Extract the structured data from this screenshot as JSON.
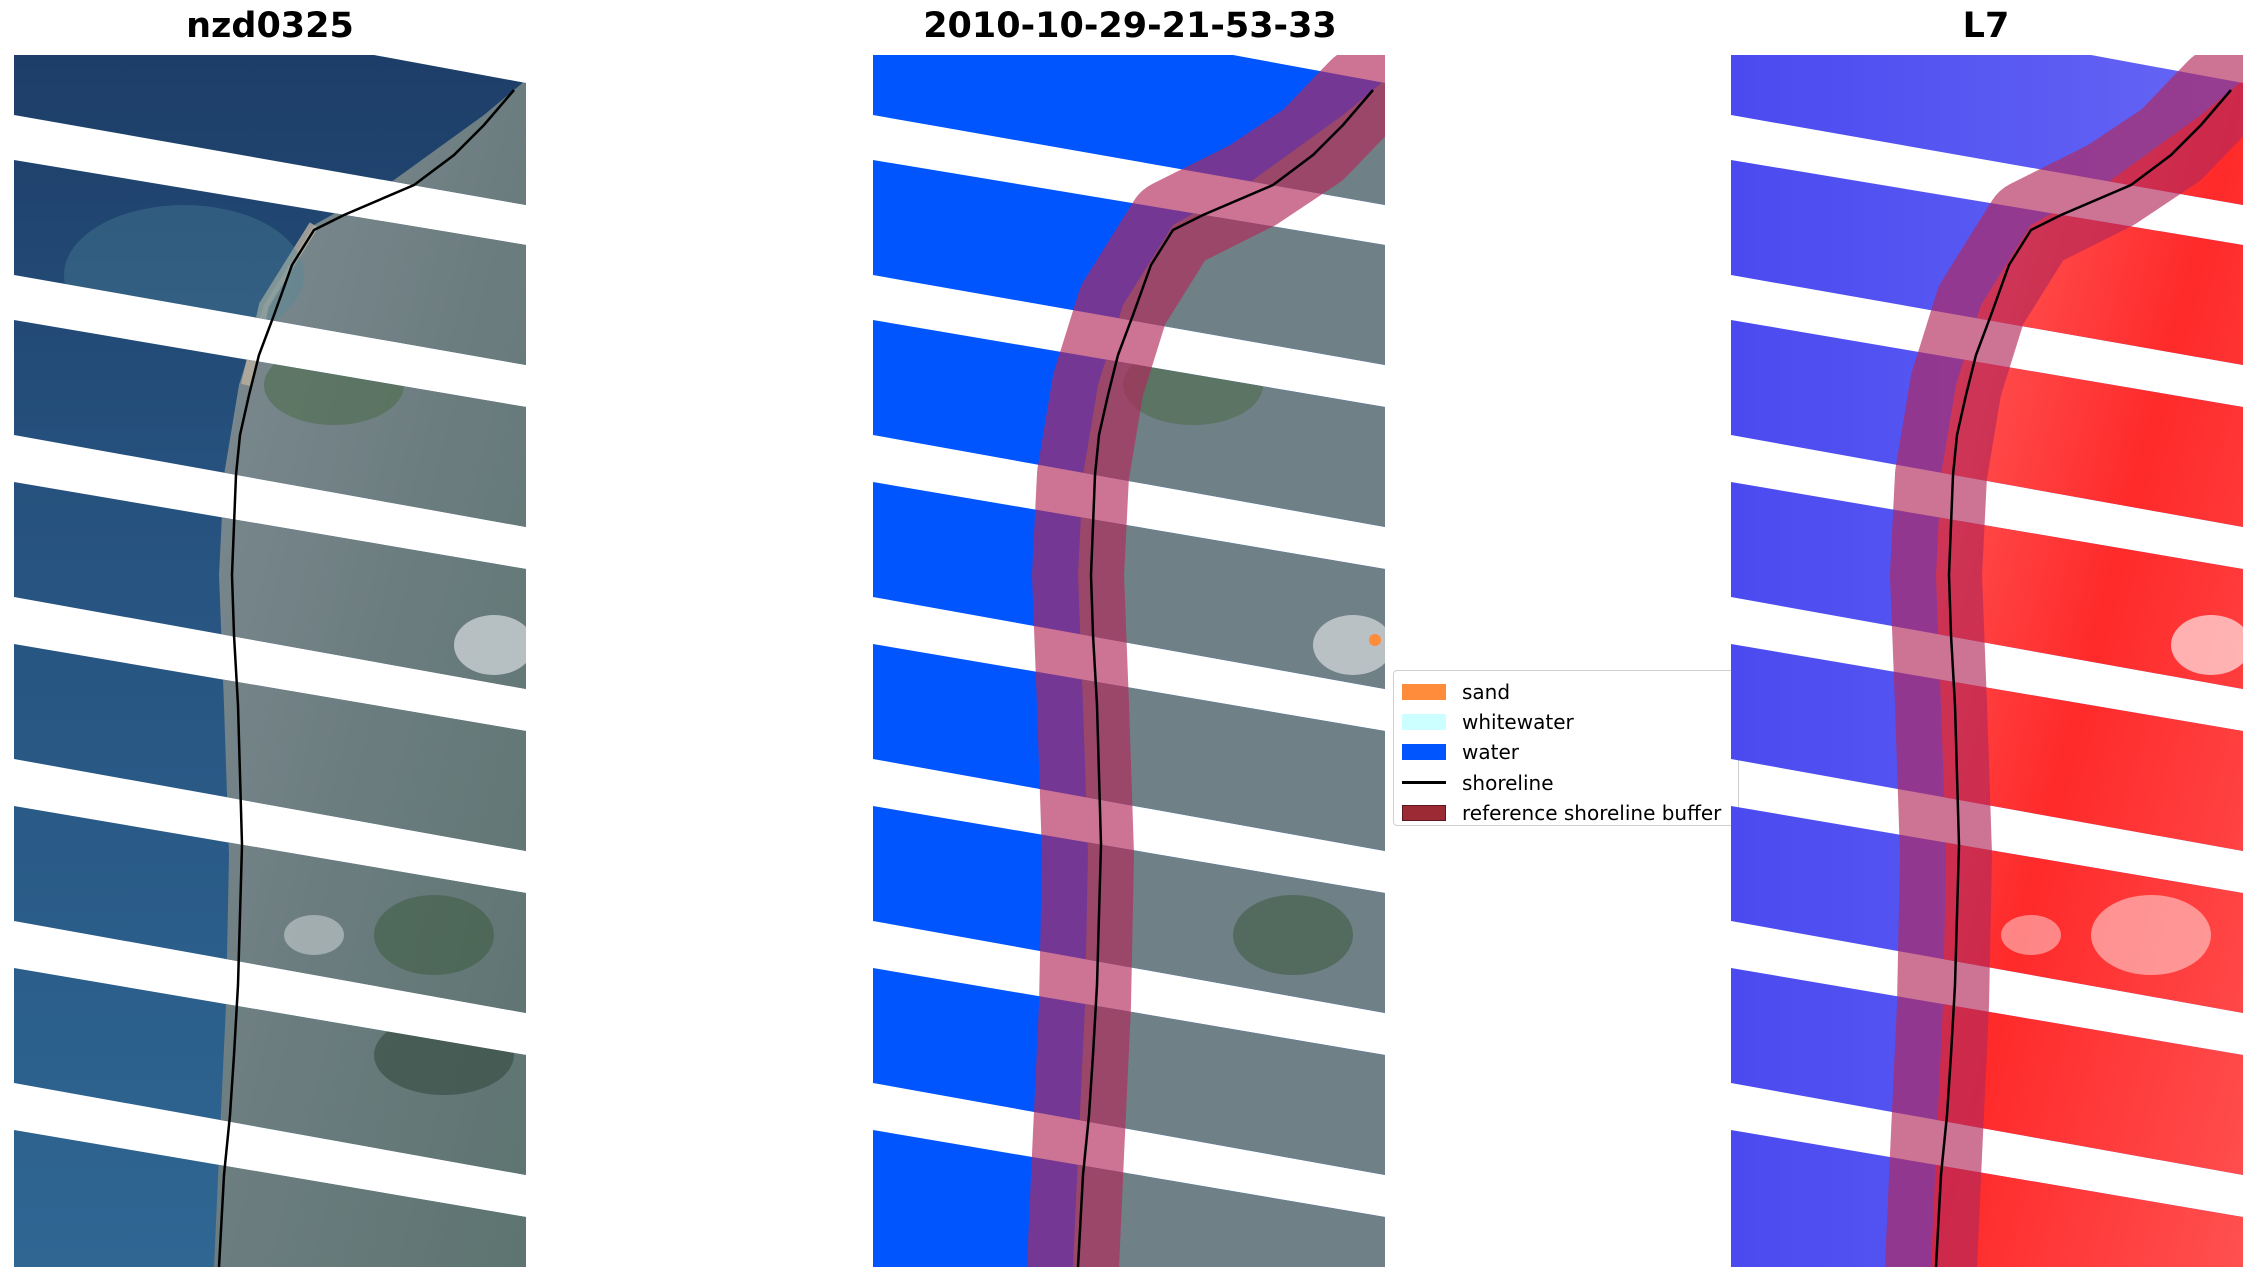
{
  "panels": [
    {
      "title": "nzd0325",
      "style": "rgb"
    },
    {
      "title": "2010-10-29-21-53-33",
      "style": "classified"
    },
    {
      "title": "L7",
      "style": "index"
    }
  ],
  "legend": {
    "items": [
      {
        "label": "sand",
        "kind": "patch",
        "color": "#ff8c3a"
      },
      {
        "label": "whitewater",
        "kind": "patch",
        "color": "#ccffff"
      },
      {
        "label": "water",
        "kind": "patch",
        "color": "#0055ff"
      },
      {
        "label": "shoreline",
        "kind": "line",
        "color": "#000000"
      },
      {
        "label": "reference shoreline buffer",
        "kind": "patch",
        "color": "#9b2a35"
      }
    ]
  },
  "colors": {
    "ocean_dark": "#1d3e68",
    "ocean_mid": "#2a5a86",
    "land": "#6d7f86",
    "water_class": "#0055ff",
    "buffer": "#b2285a",
    "index_blue": "#3a3aee",
    "index_red": "#ff3030"
  }
}
